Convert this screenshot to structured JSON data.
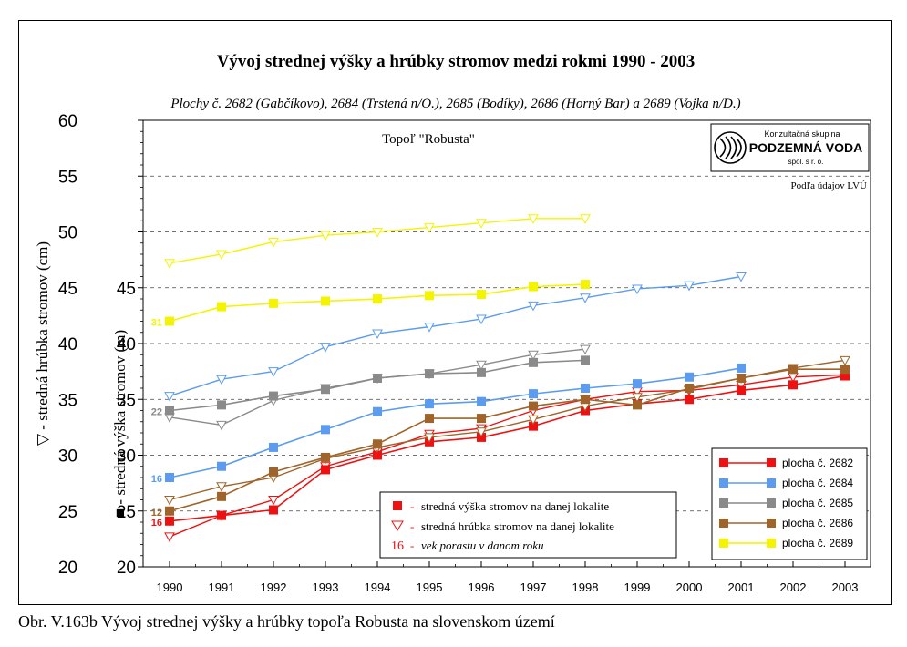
{
  "caption": "Obr. V.163b Vývoj strednej výšky a hrúbky topoľa Robusta na slovenskom území",
  "chart_data": {
    "type": "line",
    "title": "Vývoj strednej výšky a hrúbky stromov medzi rokmi 1990 - 2003",
    "subtitle": "Plochy č. 2682 (Gabčíkovo), 2684 (Trstená n/O.), 2685 (Bodíky), 2686 (Horný Bar) a 2689 (Vojka n/D.)",
    "plot_label": "Topoľ \"Robusta\"",
    "ylabel_outer": "▽  - stredná hrúbka stromov (cm)",
    "ylabel_inner": "■  - stredná výška stromov (m)",
    "ylim_outer": [
      20,
      60
    ],
    "ylim_inner": [
      20,
      45
    ],
    "yticks_outer": [
      20,
      25,
      30,
      35,
      40,
      45,
      50,
      55,
      60
    ],
    "yticks_inner": [
      20,
      25,
      30,
      35,
      40,
      45
    ],
    "x": [
      "1990",
      "1991",
      "1992",
      "1993",
      "1994",
      "1995",
      "1996",
      "1997",
      "1998",
      "1999",
      "2000",
      "2001",
      "2002",
      "2003"
    ],
    "grid_dashed": true,
    "series": [
      {
        "name": "plocha č. 2682",
        "color": "#ee1111",
        "height": [
          24.1,
          24.6,
          25.1,
          28.7,
          30.0,
          31.2,
          31.6,
          32.6,
          34.0,
          34.6,
          35.0,
          35.8,
          36.3,
          37.1
        ],
        "diameter": [
          22.7,
          24.6,
          26.0,
          29.0,
          30.3,
          31.9,
          32.4,
          34.0,
          35.0,
          35.7,
          35.8,
          36.3,
          37.0,
          37.2
        ],
        "age_label": "16"
      },
      {
        "name": "plocha č. 2684",
        "color": "#5b9cf0",
        "height": [
          28.0,
          29.0,
          30.7,
          32.3,
          33.9,
          34.6,
          34.8,
          35.5,
          36.0,
          36.4,
          37.0,
          37.8
        ],
        "diameter": [
          35.3,
          36.8,
          37.5,
          39.7,
          40.9,
          41.5,
          42.2,
          43.4,
          44.1,
          44.9,
          45.2,
          46.0
        ],
        "age_label": "16"
      },
      {
        "name": "plocha č. 2685",
        "color": "#8a8a8a",
        "height": [
          34.0,
          34.5,
          35.3,
          35.9,
          36.9,
          37.3,
          37.4,
          38.3,
          38.5
        ],
        "diameter": [
          33.4,
          32.7,
          34.9,
          36.0,
          36.9,
          37.3,
          38.1,
          39.0,
          39.5
        ],
        "age_label": "22"
      },
      {
        "name": "plocha č. 2686",
        "color": "#a0642a",
        "height": [
          25.0,
          26.3,
          28.5,
          29.8,
          31.0,
          33.3,
          33.3,
          34.4,
          35.0,
          34.5,
          36.0,
          36.9,
          37.7,
          37.7
        ],
        "diameter": [
          26.0,
          27.2,
          28.0,
          29.7,
          30.7,
          31.6,
          32.1,
          33.2,
          34.4,
          35.2,
          35.9,
          36.9,
          37.8,
          38.5
        ],
        "age_label": "12"
      },
      {
        "name": "plocha č. 2689",
        "color": "#f4f400",
        "height": [
          42.0,
          43.3,
          43.6,
          43.8,
          44.0,
          44.3,
          44.4,
          45.1,
          45.3
        ],
        "diameter": [
          47.2,
          48.0,
          49.1,
          49.7,
          50.0,
          50.4,
          50.8,
          51.2,
          51.2
        ],
        "age_label": "31"
      }
    ],
    "legend_marks": {
      "height": "stredná výška stromov na danej lokalite",
      "diameter": "stredná hrúbka stromov na danej lokalite",
      "age": "vek porastu v danom roku",
      "age_sample": "16",
      "sep": "-"
    },
    "legend_placement": "bottom-right"
  },
  "logo": {
    "line1": "Konzultačná skupina",
    "line2": "PODZEMNÁ VODA",
    "line3": "spol. s r. o."
  },
  "source_note": "Podľa údajov LVÚ"
}
